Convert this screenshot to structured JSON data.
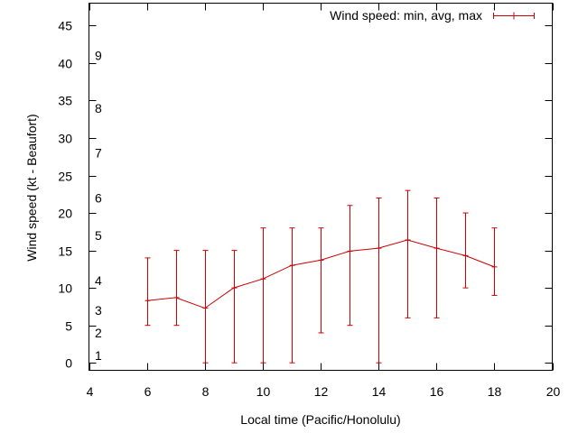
{
  "chart_data": {
    "type": "line",
    "title": "",
    "xlabel": "Local time (Pacific/Honolulu)",
    "ylabel": "Wind speed (kt - Beaufort)",
    "xlim": [
      4,
      20
    ],
    "ylim": [
      -1,
      48
    ],
    "xticks": [
      4,
      6,
      8,
      10,
      12,
      14,
      16,
      18,
      20
    ],
    "yticks": [
      0,
      5,
      10,
      15,
      20,
      25,
      30,
      35,
      40,
      45
    ],
    "beaufort_labels": [
      {
        "label": "1",
        "kt": 1
      },
      {
        "label": "2",
        "kt": 4
      },
      {
        "label": "3",
        "kt": 7
      },
      {
        "label": "4",
        "kt": 11
      },
      {
        "label": "5",
        "kt": 17
      },
      {
        "label": "6",
        "kt": 22
      },
      {
        "label": "7",
        "kt": 28
      },
      {
        "label": "8",
        "kt": 34
      },
      {
        "label": "9",
        "kt": 41
      }
    ],
    "series": [
      {
        "name": "Wind speed: min, avg, max",
        "color": "#cc0000",
        "x": [
          6,
          7,
          8,
          9,
          10,
          11,
          12,
          13,
          14,
          15,
          16,
          17,
          18
        ],
        "avg": [
          8.3,
          8.7,
          7.3,
          10,
          11.2,
          13,
          13.7,
          14.9,
          15.3,
          16.4,
          15.3,
          14.3,
          12.8
        ],
        "min": [
          5,
          5,
          0,
          0,
          0,
          0,
          4,
          5,
          0,
          6,
          6,
          10,
          9
        ],
        "max": [
          14,
          15,
          15,
          15,
          18,
          18,
          18,
          21,
          22,
          23,
          22,
          20,
          18
        ]
      }
    ]
  }
}
